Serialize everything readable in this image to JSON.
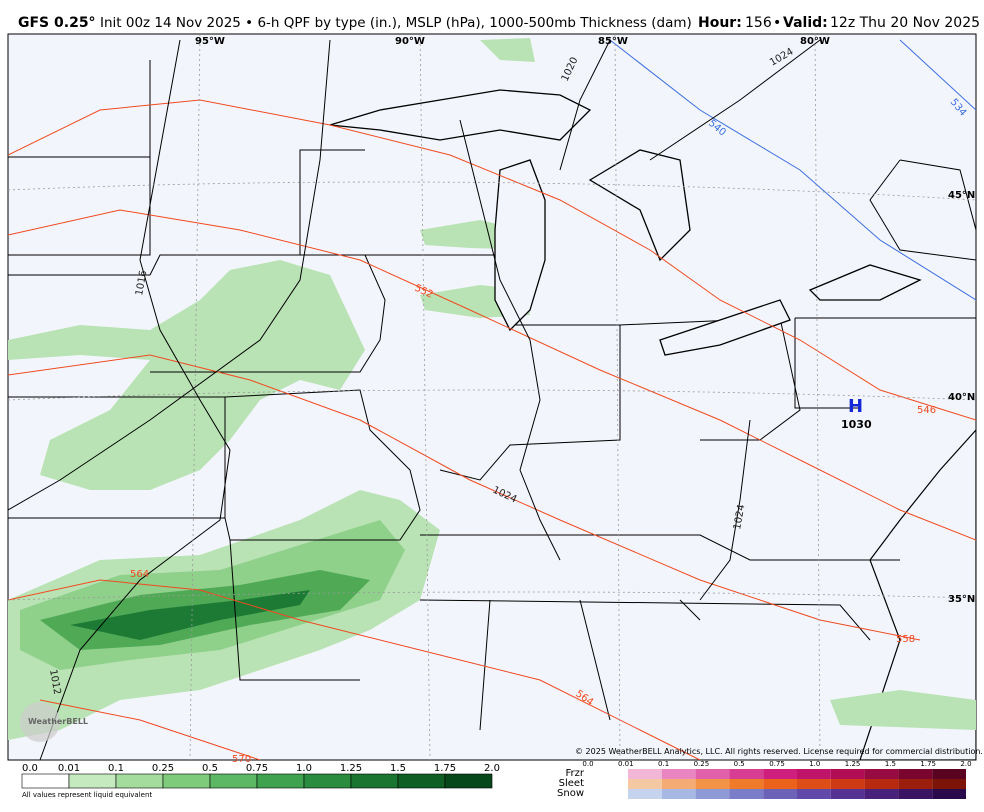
{
  "header": {
    "model": "GFS 0.25°",
    "description": "Init 00z 14 Nov 2025 • 6-h QPF by type (in.), MSLP (hPa), 1000-500mb Thickness (dam)",
    "hour_label": "Hour:",
    "hour": "156",
    "separator": "•",
    "valid_label": "Valid:",
    "valid": "12z Thu 20 Nov 2025"
  },
  "map": {
    "longitudes": [
      "95°W",
      "90°W",
      "85°W",
      "80°W"
    ],
    "latitudes": [
      "45°N",
      "40°N",
      "35°N"
    ],
    "contour_labels": [
      "1020",
      "1024",
      "540",
      "534",
      "552",
      "546",
      "1016",
      "1024",
      "1024",
      "564",
      "558",
      "564",
      "570",
      "1012"
    ],
    "high": {
      "symbol": "H",
      "pressure": "1030"
    },
    "logo": "WeatherBELL",
    "copyright": "© 2025 WeatherBELL Analytics, LLC. All rights reserved. License required for commercial distribution."
  },
  "legend": {
    "qpf_values": [
      "0.0",
      "0.01",
      "0.1",
      "0.25",
      "0.5",
      "0.75",
      "1.0",
      "1.25",
      "1.5",
      "1.75",
      "2.0"
    ],
    "note": "All values represent liquid equivalent",
    "types": [
      "Frzr",
      "Sleet",
      "Snow"
    ],
    "type_values": [
      "0.0",
      "0.01",
      "0.1",
      "0.25",
      "0.5",
      "0.75",
      "1.0",
      "1.25",
      "1.5",
      "1.75",
      "2.0"
    ]
  }
}
